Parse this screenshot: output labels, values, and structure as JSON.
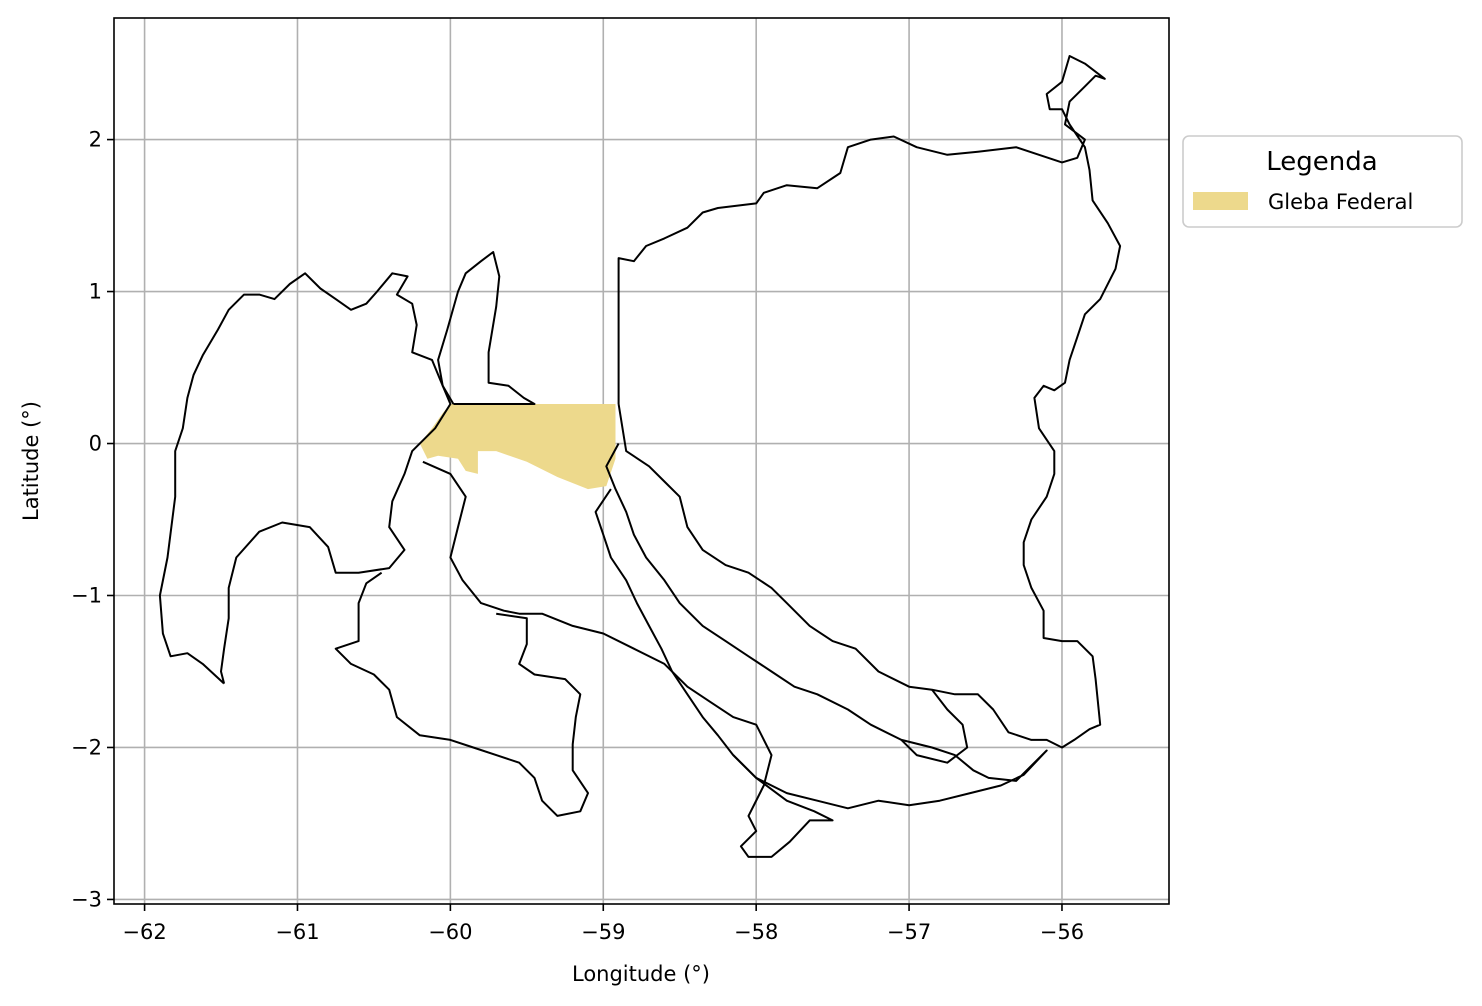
{
  "chart_data": {
    "type": "map",
    "xlabel": "Longitude (°)",
    "ylabel": "Latitude (°)",
    "xlim": [
      -62.2,
      -55.3
    ],
    "ylim": [
      -3.03,
      2.8
    ],
    "x_ticks": [
      -62,
      -61,
      -60,
      -59,
      -58,
      -57,
      -56
    ],
    "y_ticks": [
      -3,
      -2,
      -1,
      0,
      1,
      2
    ],
    "x_tick_labels": [
      "−62",
      "−61",
      "−60",
      "−59",
      "−58",
      "−57",
      "−56"
    ],
    "y_tick_labels": [
      "−3",
      "−2",
      "−1",
      "0",
      "1",
      "2"
    ],
    "grid": true,
    "legend": {
      "title": "Legenda",
      "placement": "outside-upper-right",
      "entries": [
        {
          "label": "Gleba Federal",
          "color": "#EDD98C"
        }
      ]
    },
    "colors": {
      "gleba_fill": "#EDD98C",
      "boundary": "#000000",
      "grid": "#b0b0b0"
    },
    "regions": [
      {
        "kind": "municipality-boundary",
        "coords": [
          [
            -61.48,
            -1.58
          ],
          [
            -61.62,
            -1.45
          ],
          [
            -61.72,
            -1.38
          ],
          [
            -61.83,
            -1.4
          ],
          [
            -61.88,
            -1.25
          ],
          [
            -61.9,
            -1.0
          ],
          [
            -61.85,
            -0.75
          ],
          [
            -61.8,
            -0.35
          ],
          [
            -61.8,
            -0.05
          ],
          [
            -61.75,
            0.1
          ],
          [
            -61.72,
            0.3
          ],
          [
            -61.68,
            0.45
          ],
          [
            -61.62,
            0.58
          ],
          [
            -61.52,
            0.75
          ],
          [
            -61.45,
            0.88
          ],
          [
            -61.35,
            0.98
          ],
          [
            -61.25,
            0.98
          ],
          [
            -61.15,
            0.95
          ],
          [
            -61.05,
            1.05
          ],
          [
            -60.95,
            1.12
          ],
          [
            -60.85,
            1.02
          ],
          [
            -60.75,
            0.95
          ],
          [
            -60.65,
            0.88
          ],
          [
            -60.55,
            0.92
          ],
          [
            -60.48,
            1.0
          ],
          [
            -60.38,
            1.12
          ],
          [
            -60.28,
            1.1
          ],
          [
            -60.35,
            0.98
          ],
          [
            -60.25,
            0.92
          ],
          [
            -60.22,
            0.78
          ],
          [
            -60.25,
            0.6
          ],
          [
            -60.12,
            0.55
          ],
          [
            -60.05,
            0.38
          ],
          [
            -60.0,
            0.26
          ],
          [
            -60.1,
            0.1
          ],
          [
            -60.25,
            -0.05
          ],
          [
            -60.3,
            -0.2
          ],
          [
            -60.38,
            -0.38
          ],
          [
            -60.4,
            -0.55
          ],
          [
            -60.3,
            -0.7
          ],
          [
            -60.4,
            -0.82
          ],
          [
            -60.6,
            -0.85
          ],
          [
            -60.75,
            -0.85
          ],
          [
            -60.8,
            -0.68
          ],
          [
            -60.92,
            -0.55
          ],
          [
            -61.1,
            -0.52
          ],
          [
            -61.25,
            -0.58
          ],
          [
            -61.4,
            -0.75
          ],
          [
            -61.45,
            -0.95
          ],
          [
            -61.45,
            -1.15
          ],
          [
            -61.48,
            -1.35
          ],
          [
            -61.5,
            -1.5
          ],
          [
            -61.48,
            -1.58
          ]
        ]
      },
      {
        "kind": "municipality-boundary",
        "coords": [
          [
            -59.98,
            0.26
          ],
          [
            -60.05,
            0.38
          ],
          [
            -60.08,
            0.55
          ],
          [
            -60.02,
            0.75
          ],
          [
            -59.95,
            1.0
          ],
          [
            -59.9,
            1.12
          ],
          [
            -59.8,
            1.2
          ],
          [
            -59.72,
            1.26
          ],
          [
            -59.68,
            1.1
          ],
          [
            -59.7,
            0.9
          ],
          [
            -59.75,
            0.6
          ],
          [
            -59.75,
            0.4
          ],
          [
            -59.62,
            0.38
          ],
          [
            -59.52,
            0.3
          ],
          [
            -59.45,
            0.26
          ],
          [
            -59.98,
            0.26
          ]
        ]
      },
      {
        "kind": "municipality-boundary",
        "coords": [
          [
            -58.9,
            0.26
          ],
          [
            -58.9,
            1.22
          ],
          [
            -58.8,
            1.2
          ],
          [
            -58.72,
            1.3
          ],
          [
            -58.6,
            1.35
          ],
          [
            -58.45,
            1.42
          ],
          [
            -58.35,
            1.52
          ],
          [
            -58.25,
            1.55
          ],
          [
            -58.0,
            1.58
          ],
          [
            -57.95,
            1.65
          ],
          [
            -57.8,
            1.7
          ],
          [
            -57.6,
            1.68
          ],
          [
            -57.45,
            1.78
          ],
          [
            -57.4,
            1.95
          ],
          [
            -57.25,
            2.0
          ],
          [
            -57.1,
            2.02
          ],
          [
            -56.95,
            1.95
          ],
          [
            -56.75,
            1.9
          ],
          [
            -56.55,
            1.92
          ],
          [
            -56.3,
            1.95
          ],
          [
            -56.15,
            1.9
          ],
          [
            -56.0,
            1.85
          ],
          [
            -55.9,
            1.88
          ],
          [
            -55.85,
            2.0
          ],
          [
            -55.98,
            2.1
          ],
          [
            -55.95,
            2.25
          ],
          [
            -55.85,
            2.35
          ],
          [
            -55.78,
            2.42
          ],
          [
            -55.72,
            2.4
          ],
          [
            -55.85,
            2.5
          ],
          [
            -55.95,
            2.55
          ],
          [
            -56.0,
            2.38
          ],
          [
            -56.1,
            2.3
          ],
          [
            -56.08,
            2.2
          ],
          [
            -56.0,
            2.2
          ],
          [
            -55.95,
            2.1
          ],
          [
            -55.85,
            1.95
          ],
          [
            -55.82,
            1.8
          ],
          [
            -55.8,
            1.6
          ],
          [
            -55.7,
            1.45
          ],
          [
            -55.62,
            1.3
          ],
          [
            -55.65,
            1.15
          ],
          [
            -55.75,
            0.95
          ],
          [
            -55.85,
            0.85
          ],
          [
            -55.9,
            0.7
          ],
          [
            -55.95,
            0.55
          ],
          [
            -55.98,
            0.4
          ],
          [
            -56.05,
            0.35
          ],
          [
            -56.12,
            0.38
          ],
          [
            -56.18,
            0.3
          ],
          [
            -56.15,
            0.1
          ],
          [
            -56.05,
            -0.05
          ],
          [
            -56.05,
            -0.2
          ],
          [
            -56.1,
            -0.35
          ],
          [
            -56.2,
            -0.5
          ],
          [
            -56.25,
            -0.65
          ],
          [
            -56.25,
            -0.8
          ],
          [
            -56.2,
            -0.95
          ],
          [
            -56.12,
            -1.1
          ],
          [
            -56.12,
            -1.28
          ],
          [
            -56.0,
            -1.3
          ],
          [
            -55.9,
            -1.3
          ],
          [
            -55.8,
            -1.4
          ],
          [
            -55.78,
            -1.55
          ],
          [
            -55.75,
            -1.85
          ],
          [
            -55.82,
            -1.88
          ],
          [
            -55.92,
            -1.95
          ],
          [
            -56.0,
            -2.0
          ],
          [
            -56.1,
            -1.95
          ],
          [
            -56.2,
            -1.95
          ],
          [
            -56.35,
            -1.9
          ],
          [
            -56.45,
            -1.75
          ],
          [
            -56.55,
            -1.65
          ],
          [
            -56.7,
            -1.65
          ],
          [
            -56.85,
            -1.62
          ],
          [
            -57.0,
            -1.6
          ],
          [
            -57.2,
            -1.5
          ],
          [
            -57.35,
            -1.35
          ],
          [
            -57.5,
            -1.3
          ],
          [
            -57.65,
            -1.2
          ],
          [
            -57.8,
            -1.05
          ],
          [
            -57.9,
            -0.95
          ],
          [
            -58.05,
            -0.85
          ],
          [
            -58.2,
            -0.8
          ],
          [
            -58.35,
            -0.7
          ],
          [
            -58.45,
            -0.55
          ],
          [
            -58.5,
            -0.35
          ],
          [
            -58.6,
            -0.25
          ],
          [
            -58.7,
            -0.15
          ],
          [
            -58.85,
            -0.05
          ],
          [
            -58.9,
            0.26
          ]
        ]
      },
      {
        "kind": "municipality-boundary",
        "coords": [
          [
            -58.9,
            0.0
          ],
          [
            -58.98,
            -0.15
          ],
          [
            -58.92,
            -0.3
          ],
          [
            -58.85,
            -0.45
          ],
          [
            -58.8,
            -0.6
          ],
          [
            -58.72,
            -0.75
          ],
          [
            -58.6,
            -0.9
          ],
          [
            -58.5,
            -1.05
          ],
          [
            -58.35,
            -1.2
          ],
          [
            -58.2,
            -1.3
          ],
          [
            -58.05,
            -1.4
          ],
          [
            -57.9,
            -1.5
          ],
          [
            -57.75,
            -1.6
          ],
          [
            -57.6,
            -1.65
          ],
          [
            -57.4,
            -1.75
          ],
          [
            -57.25,
            -1.85
          ],
          [
            -57.05,
            -1.95
          ],
          [
            -56.85,
            -2.0
          ],
          [
            -56.7,
            -2.05
          ],
          [
            -56.58,
            -2.15
          ],
          [
            -56.48,
            -2.2
          ],
          [
            -56.3,
            -2.22
          ],
          [
            -56.1,
            -2.02
          ],
          [
            -56.25,
            -2.18
          ],
          [
            -56.4,
            -2.25
          ],
          [
            -56.6,
            -2.3
          ],
          [
            -56.8,
            -2.35
          ],
          [
            -57.0,
            -2.38
          ],
          [
            -57.2,
            -2.35
          ],
          [
            -57.4,
            -2.4
          ],
          [
            -57.6,
            -2.35
          ],
          [
            -57.8,
            -2.3
          ],
          [
            -58.0,
            -2.2
          ],
          [
            -58.15,
            -2.05
          ],
          [
            -58.25,
            -1.92
          ],
          [
            -58.35,
            -1.8
          ],
          [
            -58.45,
            -1.65
          ],
          [
            -58.55,
            -1.5
          ],
          [
            -58.62,
            -1.35
          ],
          [
            -58.7,
            -1.2
          ],
          [
            -58.78,
            -1.05
          ],
          [
            -58.85,
            -0.9
          ],
          [
            -58.95,
            -0.75
          ],
          [
            -59.0,
            -0.6
          ],
          [
            -59.05,
            -0.45
          ],
          [
            -58.95,
            -0.3
          ]
        ]
      },
      {
        "kind": "municipality-boundary",
        "coords": [
          [
            -60.18,
            -0.12
          ],
          [
            -60.0,
            -0.2
          ],
          [
            -59.9,
            -0.35
          ],
          [
            -59.95,
            -0.55
          ],
          [
            -60.0,
            -0.75
          ],
          [
            -59.92,
            -0.9
          ],
          [
            -59.8,
            -1.05
          ],
          [
            -59.65,
            -1.1
          ],
          [
            -59.55,
            -1.12
          ],
          [
            -59.4,
            -1.12
          ],
          [
            -59.2,
            -1.2
          ],
          [
            -59.0,
            -1.25
          ],
          [
            -58.8,
            -1.35
          ],
          [
            -58.6,
            -1.45
          ],
          [
            -58.45,
            -1.6
          ],
          [
            -58.3,
            -1.7
          ],
          [
            -58.15,
            -1.8
          ],
          [
            -58.0,
            -1.85
          ],
          [
            -57.9,
            -2.05
          ],
          [
            -57.95,
            -2.25
          ],
          [
            -58.05,
            -2.45
          ],
          [
            -58.0,
            -2.55
          ],
          [
            -58.1,
            -2.65
          ],
          [
            -58.05,
            -2.72
          ],
          [
            -57.9,
            -2.72
          ],
          [
            -57.78,
            -2.62
          ],
          [
            -57.65,
            -2.48
          ],
          [
            -57.5,
            -2.48
          ],
          [
            -57.62,
            -2.42
          ],
          [
            -57.8,
            -2.35
          ],
          [
            -58.0,
            -2.2
          ],
          [
            -58.15,
            -2.05
          ]
        ]
      },
      {
        "kind": "municipality-boundary",
        "coords": [
          [
            -60.45,
            -0.85
          ],
          [
            -60.55,
            -0.92
          ],
          [
            -60.6,
            -1.05
          ],
          [
            -60.6,
            -1.3
          ],
          [
            -60.75,
            -1.35
          ],
          [
            -60.65,
            -1.45
          ],
          [
            -60.5,
            -1.52
          ],
          [
            -60.4,
            -1.62
          ],
          [
            -60.35,
            -1.8
          ],
          [
            -60.2,
            -1.92
          ],
          [
            -60.0,
            -1.95
          ],
          [
            -59.85,
            -2.0
          ],
          [
            -59.7,
            -2.05
          ],
          [
            -59.55,
            -2.1
          ],
          [
            -59.45,
            -2.2
          ],
          [
            -59.4,
            -2.35
          ],
          [
            -59.3,
            -2.45
          ],
          [
            -59.15,
            -2.42
          ],
          [
            -59.1,
            -2.3
          ],
          [
            -59.2,
            -2.15
          ],
          [
            -59.2,
            -1.98
          ],
          [
            -59.18,
            -1.8
          ],
          [
            -59.15,
            -1.65
          ],
          [
            -59.25,
            -1.55
          ],
          [
            -59.45,
            -1.52
          ],
          [
            -59.55,
            -1.45
          ],
          [
            -59.5,
            -1.32
          ],
          [
            -59.5,
            -1.15
          ],
          [
            -59.7,
            -1.12
          ]
        ]
      },
      {
        "kind": "municipality-boundary",
        "coords": [
          [
            -56.85,
            -1.62
          ],
          [
            -56.75,
            -1.75
          ],
          [
            -56.65,
            -1.85
          ],
          [
            -56.62,
            -2.0
          ],
          [
            -56.75,
            -2.1
          ],
          [
            -56.95,
            -2.05
          ],
          [
            -57.05,
            -1.95
          ]
        ]
      }
    ],
    "highlight": {
      "label": "Gleba Federal",
      "coords": [
        [
          -60.0,
          0.26
        ],
        [
          -58.92,
          0.26
        ],
        [
          -58.92,
          -0.1
        ],
        [
          -58.98,
          -0.28
        ],
        [
          -59.1,
          -0.3
        ],
        [
          -59.3,
          -0.22
        ],
        [
          -59.5,
          -0.12
        ],
        [
          -59.7,
          -0.05
        ],
        [
          -59.82,
          -0.05
        ],
        [
          -59.82,
          -0.2
        ],
        [
          -59.9,
          -0.18
        ],
        [
          -59.95,
          -0.1
        ],
        [
          -60.08,
          -0.08
        ],
        [
          -60.15,
          -0.1
        ],
        [
          -60.2,
          0.0
        ],
        [
          -60.12,
          0.1
        ],
        [
          -60.05,
          0.2
        ],
        [
          -60.0,
          0.26
        ]
      ]
    }
  }
}
